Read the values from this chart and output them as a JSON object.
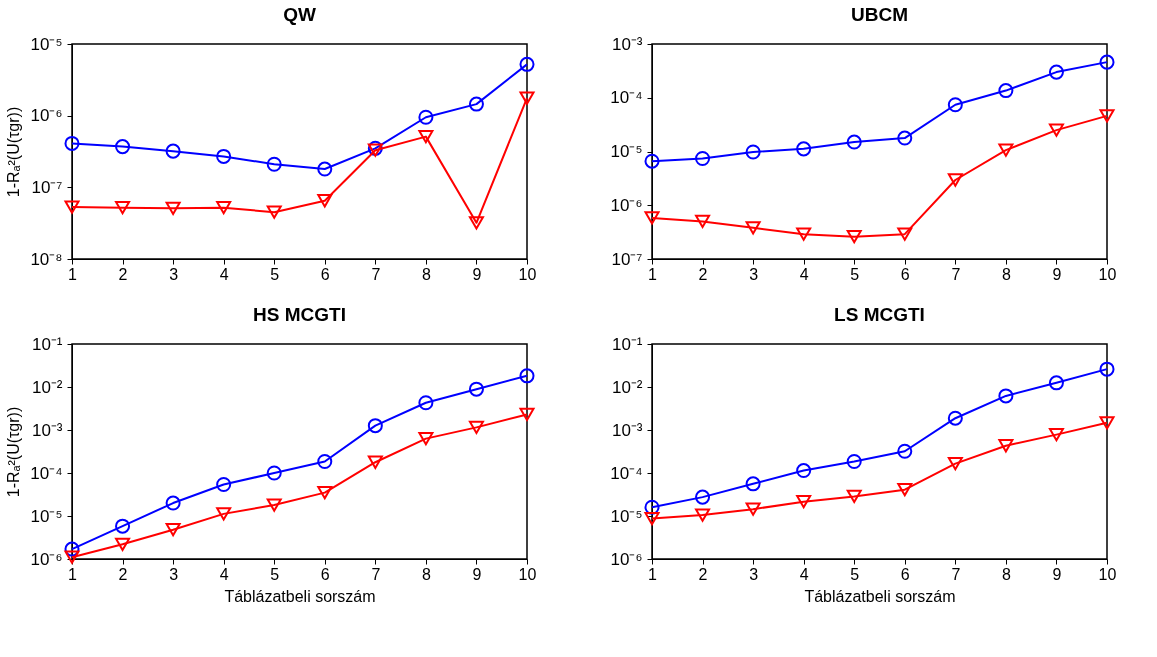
{
  "chart_data": [
    {
      "type": "line",
      "title": "QW",
      "ylabel": "1-Rₐ²(U(τgr))",
      "x": [
        1,
        2,
        3,
        4,
        5,
        6,
        7,
        8,
        9,
        10
      ],
      "xlim": [
        1,
        10
      ],
      "xticks": [
        1,
        2,
        3,
        4,
        5,
        6,
        7,
        8,
        9,
        10
      ],
      "log": "y",
      "ylim": [
        1e-08,
        1e-05
      ],
      "yticks": [
        {
          "value": 1e-08,
          "label": "10⁻⁸"
        },
        {
          "value": 1e-07,
          "label": "10⁻⁷"
        },
        {
          "value": 1e-06,
          "label": "10⁻⁶"
        },
        {
          "value": 1e-05,
          "label": "10⁻⁵"
        }
      ],
      "grid": false,
      "line_style": "solid",
      "series": [
        {
          "color": "#0000ff",
          "marker": "circle",
          "values": [
            4.1e-07,
            3.7e-07,
            3.2e-07,
            2.7e-07,
            2.1e-07,
            1.8e-07,
            3.5e-07,
            9.5e-07,
            1.45e-06,
            5.2e-06
          ]
        },
        {
          "color": "#ff0000",
          "marker": "triangle",
          "values": [
            5.3e-08,
            5.2e-08,
            5.1e-08,
            5.2e-08,
            4.5e-08,
            6.5e-08,
            3.3e-07,
            5.1e-07,
            3.2e-08,
            1.76e-06
          ]
        }
      ]
    },
    {
      "type": "line",
      "title": "UBCM",
      "x": [
        1,
        2,
        3,
        4,
        5,
        6,
        7,
        8,
        9,
        10
      ],
      "xlim": [
        1,
        10
      ],
      "xticks": [
        1,
        2,
        3,
        4,
        5,
        6,
        7,
        8,
        9,
        10
      ],
      "log": "y",
      "ylim": [
        1e-07,
        0.001
      ],
      "yticks": [
        {
          "value": 1e-07,
          "label": "10⁻⁷"
        },
        {
          "value": 1e-06,
          "label": "10⁻⁶"
        },
        {
          "value": 1e-05,
          "label": "10⁻⁵"
        },
        {
          "value": 0.0001,
          "label": "10⁻⁴"
        },
        {
          "value": 0.001,
          "label": "10⁻³"
        }
      ],
      "grid": false,
      "line_style": "solid",
      "series": [
        {
          "color": "#0000ff",
          "marker": "circle",
          "values": [
            6.6e-06,
            7.4e-06,
            9.8e-06,
            1.12e-05,
            1.5e-05,
            1.78e-05,
            7.4e-05,
            0.000136,
            0.0003,
            0.00046
          ]
        },
        {
          "color": "#ff0000",
          "marker": "triangle",
          "values": [
            5.8e-07,
            5e-07,
            3.8e-07,
            2.9e-07,
            2.6e-07,
            2.9e-07,
            2.95e-06,
            1.06e-05,
            2.5e-05,
            4.6e-05
          ]
        }
      ]
    },
    {
      "type": "line",
      "title": "HS MCGTI",
      "xlabel": "Táblázatbeli sorszám",
      "ylabel": "1-Rₐ²(U(τgr))",
      "x": [
        1,
        2,
        3,
        4,
        5,
        6,
        7,
        8,
        9,
        10
      ],
      "xlim": [
        1,
        10
      ],
      "xticks": [
        1,
        2,
        3,
        4,
        5,
        6,
        7,
        8,
        9,
        10
      ],
      "log": "y",
      "ylim": [
        1e-06,
        0.1
      ],
      "yticks": [
        {
          "value": 1e-06,
          "label": "10⁻⁶"
        },
        {
          "value": 1e-05,
          "label": "10⁻⁵"
        },
        {
          "value": 0.0001,
          "label": "10⁻⁴"
        },
        {
          "value": 0.001,
          "label": "10⁻³"
        },
        {
          "value": 0.01,
          "label": "10⁻²"
        },
        {
          "value": 0.1,
          "label": "10⁻¹"
        }
      ],
      "grid": false,
      "line_style": "solid",
      "series": [
        {
          "color": "#0000ff",
          "marker": "circle",
          "values": [
            1.7e-06,
            5.8e-06,
            2e-05,
            5.4e-05,
            0.0001,
            0.000185,
            0.00126,
            0.0043,
            0.0089,
            0.0182
          ]
        },
        {
          "color": "#ff0000",
          "marker": "triangle",
          "values": [
            1.1e-06,
            2.2e-06,
            4.8e-06,
            1.12e-05,
            1.8e-05,
            3.5e-05,
            0.000178,
            0.00063,
            0.00115,
            0.0023
          ]
        }
      ]
    },
    {
      "type": "line",
      "title": "LS MCGTI",
      "xlabel": "Táblázatbeli sorszám",
      "x": [
        1,
        2,
        3,
        4,
        5,
        6,
        7,
        8,
        9,
        10
      ],
      "xlim": [
        1,
        10
      ],
      "xticks": [
        1,
        2,
        3,
        4,
        5,
        6,
        7,
        8,
        9,
        10
      ],
      "log": "y",
      "ylim": [
        1e-06,
        0.1
      ],
      "yticks": [
        {
          "value": 1e-06,
          "label": "10⁻⁶"
        },
        {
          "value": 1e-05,
          "label": "10⁻⁵"
        },
        {
          "value": 0.0001,
          "label": "10⁻⁴"
        },
        {
          "value": 0.001,
          "label": "10⁻³"
        },
        {
          "value": 0.01,
          "label": "10⁻²"
        },
        {
          "value": 0.1,
          "label": "10⁻¹"
        }
      ],
      "grid": false,
      "line_style": "solid",
      "series": [
        {
          "color": "#0000ff",
          "marker": "circle",
          "values": [
            1.6e-05,
            2.75e-05,
            5.6e-05,
            0.000114,
            0.000185,
            0.00032,
            0.00188,
            0.0062,
            0.0125,
            0.026
          ]
        },
        {
          "color": "#ff0000",
          "marker": "triangle",
          "values": [
            8.7e-06,
            1.05e-05,
            1.44e-05,
            2.15e-05,
            2.85e-05,
            4.1e-05,
            0.000165,
            0.00043,
            0.00078,
            0.00147
          ]
        }
      ]
    }
  ]
}
